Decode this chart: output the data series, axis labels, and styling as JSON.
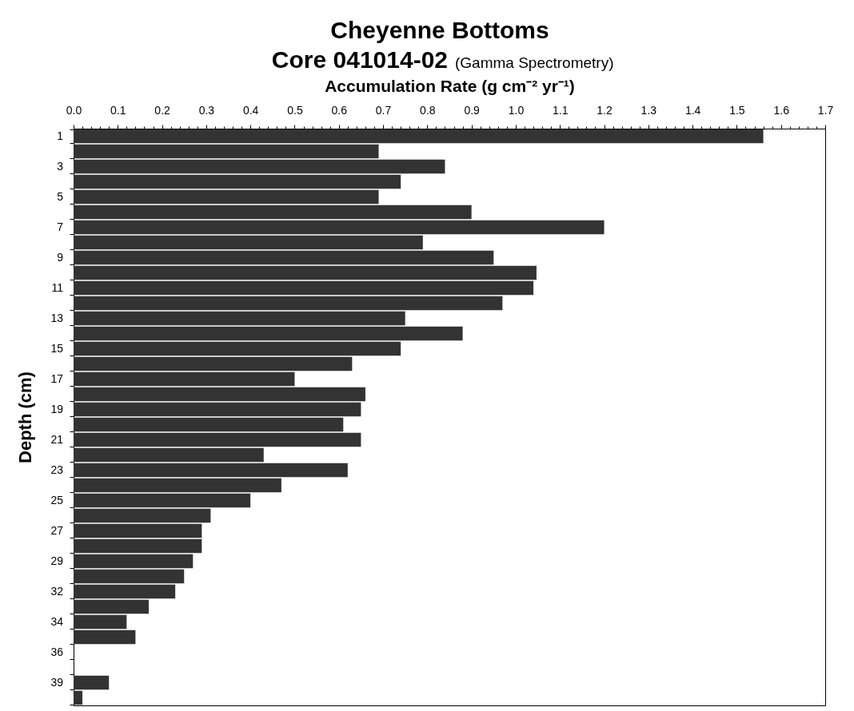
{
  "chart_data": {
    "type": "bar",
    "orientation": "horizontal",
    "title": "Cheyenne Bottoms",
    "subtitle": "Core 041014-02",
    "annotations": [
      "(Gamma Spectrometry)"
    ],
    "xlabel": "Accumulation Rate (g cm⁻² yr⁻¹)",
    "ylabel": "Depth (cm)",
    "categories": [
      "1",
      null,
      "3",
      null,
      "5",
      null,
      "7",
      null,
      "9",
      null,
      "11",
      null,
      "13",
      null,
      "15",
      null,
      "17",
      null,
      "19",
      null,
      "21",
      null,
      "23",
      null,
      "25",
      null,
      "27",
      null,
      "29",
      null,
      "32",
      null,
      "34",
      null,
      "36",
      null,
      "39",
      null
    ],
    "values": [
      1.56,
      0.69,
      0.84,
      0.74,
      0.69,
      0.9,
      1.2,
      0.79,
      0.95,
      1.047,
      1.04,
      0.97,
      0.75,
      0.88,
      0.74,
      0.63,
      0.5,
      0.66,
      0.65,
      0.61,
      0.65,
      0.43,
      0.62,
      0.47,
      0.4,
      0.31,
      0.29,
      0.29,
      0.27,
      0.25,
      0.23,
      0.17,
      0.12,
      0.14,
      null,
      null,
      0.08,
      0.02
    ],
    "color": "#333333",
    "xlim": [
      0,
      1.7
    ],
    "xticks": [
      {
        "value": 0,
        "label": "0.0"
      },
      {
        "value": 0.02,
        "label": null
      },
      {
        "value": 0.04,
        "label": null
      },
      {
        "value": 0.06,
        "label": null
      },
      {
        "value": 0.08,
        "label": null
      },
      0.1,
      {
        "value": 0.12,
        "label": null
      },
      {
        "value": 0.14,
        "label": null
      },
      {
        "value": 0.16,
        "label": null
      },
      {
        "value": 0.18,
        "label": null
      },
      0.2,
      {
        "value": 0.22,
        "label": null
      },
      {
        "value": 0.24,
        "label": null
      },
      {
        "value": 0.26,
        "label": null
      },
      {
        "value": 0.28,
        "label": null
      },
      0.3,
      {
        "value": 0.32,
        "label": null
      },
      {
        "value": 0.34,
        "label": null
      },
      {
        "value": 0.36,
        "label": null
      },
      {
        "value": 0.38,
        "label": null
      },
      0.4,
      {
        "value": 0.42,
        "label": null
      },
      {
        "value": 0.44,
        "label": null
      },
      {
        "value": 0.46,
        "label": null
      },
      {
        "value": 0.48,
        "label": null
      },
      0.5,
      {
        "value": 0.52,
        "label": null
      },
      {
        "value": 0.54,
        "label": null
      },
      {
        "value": 0.56,
        "label": null
      },
      {
        "value": 0.58,
        "label": null
      },
      0.6,
      {
        "value": 0.62,
        "label": null
      },
      {
        "value": 0.64,
        "label": null
      },
      {
        "value": 0.66,
        "label": null
      },
      {
        "value": 0.68,
        "label": null
      },
      0.7,
      {
        "value": 0.72,
        "label": null
      },
      {
        "value": 0.74,
        "label": null
      },
      {
        "value": 0.76,
        "label": null
      },
      {
        "value": 0.78,
        "label": null
      },
      0.8,
      {
        "value": 0.82,
        "label": null
      },
      {
        "value": 0.84,
        "label": null
      },
      {
        "value": 0.86,
        "label": null
      },
      {
        "value": 0.88,
        "label": null
      },
      0.9,
      {
        "value": 0.92,
        "label": null
      },
      {
        "value": 0.94,
        "label": null
      },
      {
        "value": 0.96,
        "label": null
      },
      {
        "value": 0.98,
        "label": null
      },
      {
        "value": 1,
        "label": "1.0"
      },
      {
        "value": 1.02,
        "label": null
      },
      {
        "value": 1.04,
        "label": null
      },
      {
        "value": 1.06,
        "label": null
      },
      {
        "value": 1.08,
        "label": null
      },
      1.1,
      {
        "value": 1.12,
        "label": null
      },
      {
        "value": 1.14,
        "label": null
      },
      {
        "value": 1.16,
        "label": null
      },
      {
        "value": 1.18,
        "label": null
      },
      1.2,
      {
        "value": 1.22,
        "label": null
      },
      {
        "value": 1.24,
        "label": null
      },
      {
        "value": 1.26,
        "label": null
      },
      {
        "value": 1.28,
        "label": null
      },
      1.3,
      {
        "value": 1.32,
        "label": null
      },
      {
        "value": 1.34,
        "label": null
      },
      {
        "value": 1.36,
        "label": null
      },
      {
        "value": 1.38,
        "label": null
      },
      1.4,
      {
        "value": 1.42,
        "label": null
      },
      {
        "value": 1.44,
        "label": null
      },
      {
        "value": 1.46,
        "label": null
      },
      {
        "value": 1.48,
        "label": null
      },
      1.5,
      {
        "value": 1.52,
        "label": null
      },
      {
        "value": 1.54,
        "label": null
      },
      {
        "value": 1.56,
        "label": null
      },
      {
        "value": 1.58,
        "label": null
      },
      1.6,
      {
        "value": 1.62,
        "label": null
      },
      {
        "value": 1.64,
        "label": null
      },
      {
        "value": 1.66,
        "label": null
      },
      {
        "value": 1.68,
        "label": null
      },
      1.7
    ]
  }
}
